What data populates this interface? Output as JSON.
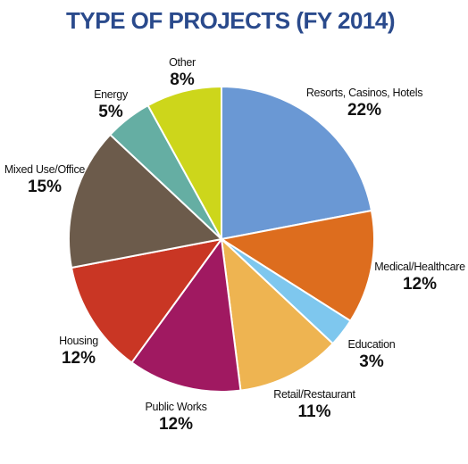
{
  "chart_data": {
    "type": "pie",
    "title": "TYPE OF PROJECTS (FY 2014)",
    "start_angle_deg": 0,
    "direction": "clockwise",
    "slices": [
      {
        "label": "Resorts, Casinos, Hotels",
        "value": 22,
        "value_label": "22%",
        "color": "#6a98d4"
      },
      {
        "label": "Medical/Healthcare",
        "value": 12,
        "value_label": "12%",
        "color": "#dd6d1e"
      },
      {
        "label": "Education",
        "value": 3,
        "value_label": "3%",
        "color": "#7ec7ee"
      },
      {
        "label": "Retail/Restaurant",
        "value": 11,
        "value_label": "11%",
        "color": "#eeb451"
      },
      {
        "label": "Public Works",
        "value": 12,
        "value_label": "12%",
        "color": "#a01961"
      },
      {
        "label": "Housing",
        "value": 12,
        "value_label": "12%",
        "color": "#c93624"
      },
      {
        "label": "Mixed Use/Office",
        "value": 15,
        "value_label": "15%",
        "color": "#6c5b4b"
      },
      {
        "label": "Energy",
        "value": 5,
        "value_label": "5%",
        "color": "#65aea3"
      },
      {
        "label": "Other",
        "value": 8,
        "value_label": "8%",
        "color": "#cdd61b"
      }
    ]
  }
}
